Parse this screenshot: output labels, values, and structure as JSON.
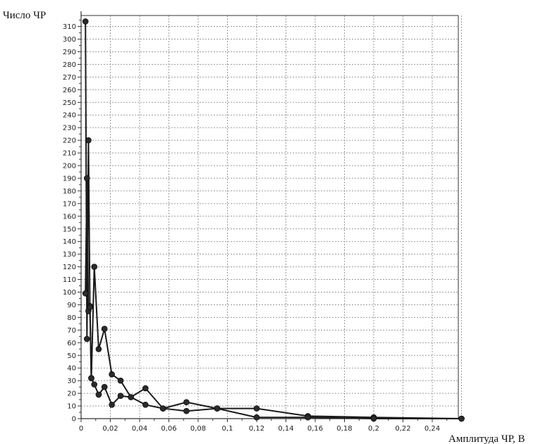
{
  "chart_data": {
    "type": "line",
    "title": "",
    "xlabel": "Амплитуда ЧР, В",
    "ylabel": "Число ЧР",
    "xlim": [
      0,
      0.26
    ],
    "ylim": [
      0,
      315
    ],
    "grid": true,
    "x_ticks": [
      "0",
      "0,02",
      "0,04",
      "0,06",
      "0,08",
      "0,1",
      "0,12",
      "0,14",
      "0,16",
      "0,18",
      "0,2",
      "0,22",
      "0,24"
    ],
    "y_ticks": [
      "0",
      "10",
      "20",
      "30",
      "40",
      "50",
      "60",
      "70",
      "80",
      "90",
      "100",
      "110",
      "120",
      "130",
      "140",
      "150",
      "160",
      "170",
      "180",
      "190",
      "200",
      "210",
      "220",
      "230",
      "240",
      "250",
      "260",
      "270",
      "280",
      "290",
      "300",
      "310"
    ],
    "series": [
      {
        "x": [
          0.003,
          0.004,
          0.005,
          0.006,
          0.007,
          0.009,
          0.012,
          0.016,
          0.021,
          0.027,
          0.034,
          0.044,
          0.056,
          0.072,
          0.093,
          0.12,
          0.155,
          0.2,
          0.26
        ],
        "y": [
          314,
          63,
          220,
          89,
          32,
          120,
          55,
          71,
          35,
          30,
          17,
          11,
          8,
          13,
          8,
          8,
          2,
          1,
          0
        ]
      },
      {
        "x": [
          0.003,
          0.004,
          0.005,
          0.006,
          0.007,
          0.009,
          0.012,
          0.016,
          0.021,
          0.027,
          0.034,
          0.044,
          0.056,
          0.072,
          0.093,
          0.12,
          0.155,
          0.2,
          0.26
        ],
        "y": [
          99,
          190,
          85,
          88,
          32,
          27,
          19,
          25,
          11,
          18,
          17,
          24,
          8,
          6,
          8,
          1,
          1,
          0,
          0
        ]
      }
    ]
  }
}
